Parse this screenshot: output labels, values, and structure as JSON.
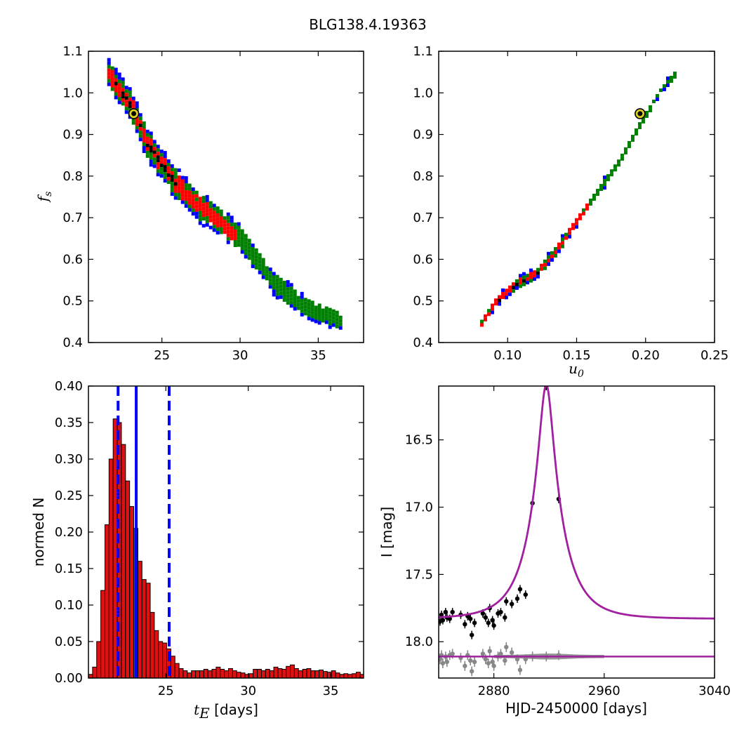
{
  "title": "BLG138.4.19363",
  "chart_data": [
    {
      "panel": "top-left",
      "type": "heatmap",
      "xlabel": "",
      "ylabel": "f_s",
      "xlim": [
        20.3,
        37.9
      ],
      "ylim": [
        0.4,
        1.1
      ],
      "xticks": [
        "25",
        "30",
        "35"
      ],
      "yticks": [
        "0.4",
        "0.5",
        "0.6",
        "0.7",
        "0.8",
        "0.9",
        "1.0",
        "1.1"
      ],
      "confidence_colors": [
        "#0000ff",
        "#008000",
        "#ff0000",
        "#000000"
      ],
      "ridge": [
        [
          21.5,
          1.05
        ],
        [
          23,
          0.97
        ],
        [
          24,
          0.88
        ],
        [
          25.5,
          0.8
        ],
        [
          27,
          0.74
        ],
        [
          28.5,
          0.7
        ],
        [
          30,
          0.65
        ],
        [
          32,
          0.55
        ],
        [
          34,
          0.49
        ],
        [
          36.5,
          0.455
        ]
      ],
      "best_fit": {
        "x": 23.2,
        "y": 0.95
      }
    },
    {
      "panel": "top-right",
      "type": "heatmap",
      "xlabel": "u_0",
      "ylabel": "",
      "xlim": [
        0.05,
        0.25
      ],
      "ylim": [
        0.4,
        1.1
      ],
      "xticks": [
        "0.10",
        "0.15",
        "0.20",
        "0.25"
      ],
      "yticks": [
        "0.4",
        "0.5",
        "0.6",
        "0.7",
        "0.8",
        "0.9",
        "1.0",
        "1.1"
      ],
      "confidence_colors": [
        "#0000ff",
        "#008000",
        "#ff0000",
        "#000000"
      ],
      "ridge": [
        [
          0.08,
          0.45
        ],
        [
          0.09,
          0.5
        ],
        [
          0.105,
          0.545
        ],
        [
          0.12,
          0.57
        ],
        [
          0.135,
          0.63
        ],
        [
          0.15,
          0.7
        ],
        [
          0.165,
          0.77
        ],
        [
          0.18,
          0.84
        ],
        [
          0.195,
          0.93
        ],
        [
          0.21,
          1.01
        ],
        [
          0.22,
          1.05
        ]
      ],
      "best_fit": {
        "x": 0.196,
        "y": 0.95
      }
    },
    {
      "panel": "bottom-left",
      "type": "bar",
      "xlabel": "t_E [days]",
      "ylabel": "normed N",
      "xlim": [
        20.3,
        37.0
      ],
      "ylim": [
        0.0,
        0.4
      ],
      "xticks": [
        "25",
        "30",
        "35"
      ],
      "yticks": [
        "0.00",
        "0.05",
        "0.10",
        "0.15",
        "0.20",
        "0.25",
        "0.30",
        "0.35",
        "0.40"
      ],
      "bin_width": 0.25,
      "bin_start": 20.3,
      "values": [
        0.005,
        0.015,
        0.05,
        0.12,
        0.21,
        0.3,
        0.355,
        0.35,
        0.32,
        0.27,
        0.235,
        0.205,
        0.16,
        0.135,
        0.13,
        0.09,
        0.065,
        0.05,
        0.048,
        0.04,
        0.03,
        0.02,
        0.013,
        0.01,
        0.007,
        0.01,
        0.01,
        0.01,
        0.012,
        0.01,
        0.012,
        0.015,
        0.012,
        0.01,
        0.013,
        0.01,
        0.008,
        0.007,
        0.005,
        0.006,
        0.012,
        0.012,
        0.01,
        0.012,
        0.01,
        0.015,
        0.013,
        0.012,
        0.016,
        0.018,
        0.013,
        0.01,
        0.012,
        0.013,
        0.01,
        0.01,
        0.011,
        0.009,
        0.008,
        0.01,
        0.007,
        0.005,
        0.006,
        0.005,
        0.006,
        0.008,
        0.005
      ],
      "bar_color": "#dd1111",
      "vlines": [
        {
          "x": 23.2,
          "style": "solid",
          "color": "#0000ff"
        },
        {
          "x": 22.1,
          "style": "dashed",
          "color": "#0000ff"
        },
        {
          "x": 25.2,
          "style": "dashed",
          "color": "#0000ff"
        }
      ]
    },
    {
      "panel": "bottom-right",
      "type": "line",
      "xlabel": "HJD-2450000 [days]",
      "ylabel": "I [mag]",
      "xlim": [
        2840,
        3040
      ],
      "ylim": [
        18.27,
        16.1
      ],
      "y_inverted": true,
      "xticks": [
        "2880",
        "2960",
        "3040"
      ],
      "yticks": [
        "16.5",
        "17.0",
        "17.5",
        "18.0"
      ],
      "model": {
        "t0": 2918,
        "tE": 23.2,
        "u0": 0.196,
        "fs": 0.95,
        "i_base": 17.83,
        "color": "#a020a0"
      },
      "resid_baseline": 18.11,
      "points": [
        [
          2841,
          17.85
        ],
        [
          2842,
          17.8
        ],
        [
          2843,
          17.84
        ],
        [
          2845,
          17.78
        ],
        [
          2846,
          17.82
        ],
        [
          2848,
          17.83
        ],
        [
          2850,
          17.78
        ],
        [
          2856,
          17.8
        ],
        [
          2859,
          17.87
        ],
        [
          2861,
          17.81
        ],
        [
          2863,
          17.83
        ],
        [
          2864,
          17.95
        ],
        [
          2866,
          17.86
        ],
        [
          2872,
          17.79
        ],
        [
          2874,
          17.82
        ],
        [
          2876,
          17.86
        ],
        [
          2877,
          17.75
        ],
        [
          2879,
          17.84
        ],
        [
          2880,
          17.88
        ],
        [
          2883,
          17.79
        ],
        [
          2885,
          17.78
        ],
        [
          2888,
          17.82
        ],
        [
          2889,
          17.7
        ],
        [
          2893,
          17.72
        ],
        [
          2897,
          17.68
        ],
        [
          2899,
          17.61
        ],
        [
          2903,
          17.65
        ],
        [
          2908,
          16.97
        ],
        [
          2918,
          16.1
        ],
        [
          2927,
          16.94
        ]
      ],
      "resid_points": [
        [
          2841,
          18.13
        ],
        [
          2842,
          18.1
        ],
        [
          2843,
          18.16
        ],
        [
          2845,
          18.11
        ],
        [
          2846,
          18.15
        ],
        [
          2848,
          18.1
        ],
        [
          2850,
          18.09
        ],
        [
          2856,
          18.12
        ],
        [
          2859,
          18.18
        ],
        [
          2861,
          18.1
        ],
        [
          2863,
          18.14
        ],
        [
          2864,
          18.22
        ],
        [
          2866,
          18.15
        ],
        [
          2872,
          18.09
        ],
        [
          2874,
          18.13
        ],
        [
          2876,
          18.16
        ],
        [
          2877,
          18.07
        ],
        [
          2879,
          18.15
        ],
        [
          2880,
          18.18
        ],
        [
          2883,
          18.11
        ],
        [
          2885,
          18.09
        ],
        [
          2888,
          18.14
        ],
        [
          2889,
          18.04
        ],
        [
          2893,
          18.08
        ],
        [
          2897,
          18.13
        ],
        [
          2899,
          18.21
        ],
        [
          2903,
          18.13
        ],
        [
          2908,
          18.11
        ],
        [
          2918,
          18.11
        ],
        [
          2927,
          18.1
        ]
      ]
    }
  ]
}
